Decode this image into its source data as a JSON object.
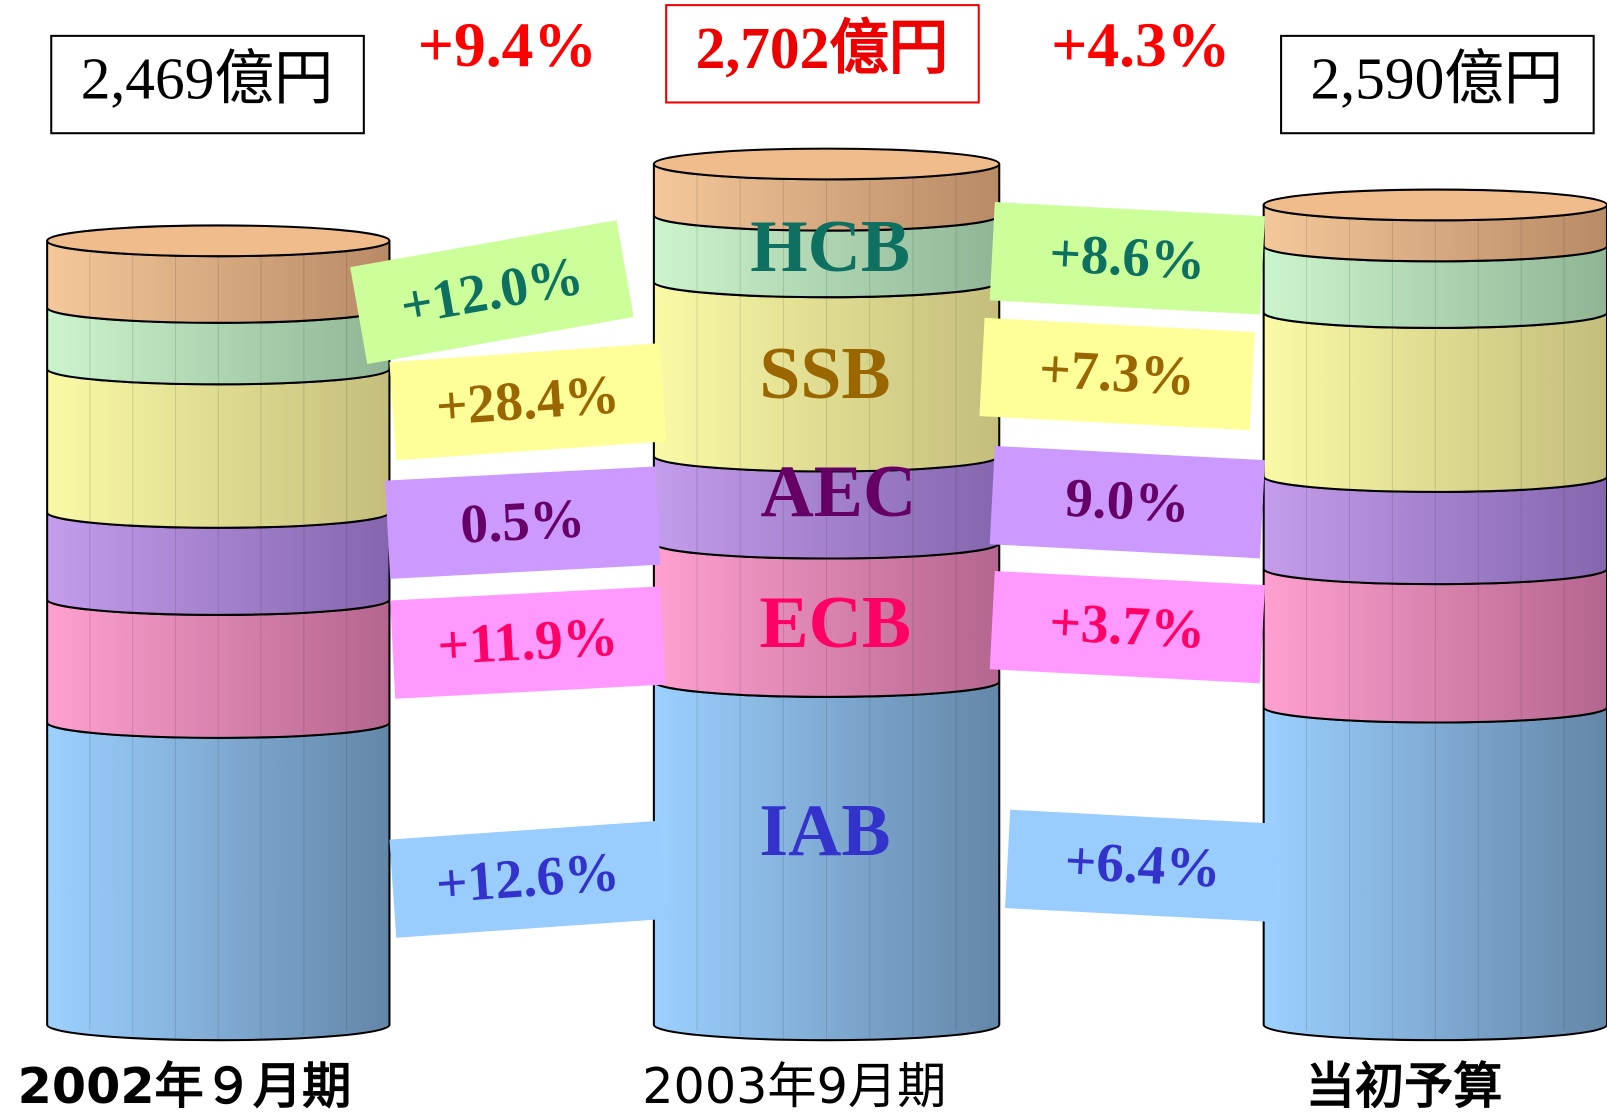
{
  "columns": [
    {
      "total": "2,469億円",
      "period": "2002年９月期"
    },
    {
      "total": "2,702億円",
      "period": "2003年9月期"
    },
    {
      "total": "2,590億円",
      "period": "当初予算"
    }
  ],
  "total_growth": [
    "+9.4%",
    "+4.3%"
  ],
  "segments": [
    {
      "name": "HCB",
      "growth": [
        "+12.0%",
        "+8.6%"
      ]
    },
    {
      "name": "SSB",
      "growth": [
        "+28.4%",
        "+7.3%"
      ]
    },
    {
      "name": "AEC",
      "growth": [
        "0.5%",
        "9.0%"
      ]
    },
    {
      "name": "ECB",
      "growth": [
        "+11.9%",
        "+3.7%"
      ]
    },
    {
      "name": "IAB",
      "growth": [
        "+12.6%",
        "+6.4%"
      ]
    }
  ]
}
